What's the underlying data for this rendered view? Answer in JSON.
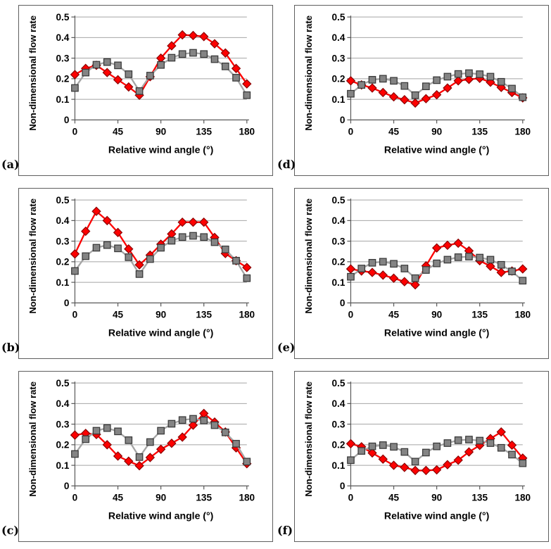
{
  "page": {
    "background": "#FFFFFF"
  },
  "chart_common": {
    "type": "line",
    "title": "",
    "xlabel": "Relative wind angle (°)",
    "ylabel": "Non-dimensional flow rate",
    "xlim": [
      0,
      180
    ],
    "ylim": [
      0,
      0.5
    ],
    "x_ticks": [
      "0",
      "45",
      "90",
      "135",
      "180"
    ],
    "y_ticks": [
      "0",
      "0.1",
      "0.2",
      "0.3",
      "0.4",
      "0.5"
    ],
    "grid": "horizontal",
    "legend": "none",
    "x": [
      0,
      11.25,
      22.5,
      33.75,
      45,
      56.25,
      67.5,
      78.75,
      90,
      101.25,
      112.5,
      123.75,
      135,
      146.25,
      157.5,
      168.75,
      180
    ],
    "styles": {
      "gridline_color": "#A5A5A5",
      "axis_color": "#595959",
      "text_color": "#000000",
      "panel_border_color": "#5F5F5F"
    }
  },
  "chart_data": [
    {
      "panel_label": "(a)",
      "type": "line",
      "series": [
        {
          "name": "red-diamond-series",
          "marker": "diamond",
          "line_color": "#FE0000",
          "marker_fill": "#FE0000",
          "marker_stroke": "#8B0000",
          "values": [
            0.22,
            0.25,
            0.265,
            0.23,
            0.195,
            0.16,
            0.12,
            0.21,
            0.3,
            0.36,
            0.413,
            0.41,
            0.405,
            0.37,
            0.325,
            0.25,
            0.175
          ]
        },
        {
          "name": "gray-square-series",
          "marker": "square",
          "line_color": "#A5A5A5",
          "marker_fill": "#848484",
          "marker_stroke": "#363636",
          "values": [
            0.155,
            0.23,
            0.268,
            0.281,
            0.265,
            0.222,
            0.14,
            0.215,
            0.267,
            0.302,
            0.32,
            0.326,
            0.32,
            0.295,
            0.26,
            0.205,
            0.12
          ]
        }
      ]
    },
    {
      "panel_label": "(b)",
      "type": "line",
      "series": [
        {
          "name": "red-diamond-series",
          "marker": "diamond",
          "line_color": "#FE0000",
          "marker_fill": "#FE0000",
          "marker_stroke": "#8B0000",
          "values": [
            0.238,
            0.348,
            0.445,
            0.4,
            0.342,
            0.262,
            0.185,
            0.232,
            0.285,
            0.335,
            0.392,
            0.392,
            0.392,
            0.318,
            0.24,
            0.205,
            0.172
          ]
        },
        {
          "name": "gray-square-series",
          "marker": "square",
          "line_color": "#A5A5A5",
          "marker_fill": "#848484",
          "marker_stroke": "#363636",
          "values": [
            0.155,
            0.227,
            0.268,
            0.281,
            0.265,
            0.222,
            0.14,
            0.213,
            0.268,
            0.302,
            0.32,
            0.326,
            0.32,
            0.295,
            0.26,
            0.205,
            0.12
          ]
        }
      ]
    },
    {
      "panel_label": "(c)",
      "type": "line",
      "series": [
        {
          "name": "red-diamond-series",
          "marker": "diamond",
          "line_color": "#FE0000",
          "marker_fill": "#FE0000",
          "marker_stroke": "#8B0000",
          "values": [
            0.247,
            0.255,
            0.25,
            0.2,
            0.145,
            0.12,
            0.098,
            0.138,
            0.178,
            0.207,
            0.237,
            0.295,
            0.352,
            0.31,
            0.262,
            0.185,
            0.108
          ]
        },
        {
          "name": "gray-square-series",
          "marker": "square",
          "line_color": "#A5A5A5",
          "marker_fill": "#848484",
          "marker_stroke": "#363636",
          "values": [
            0.155,
            0.227,
            0.268,
            0.281,
            0.265,
            0.222,
            0.14,
            0.213,
            0.268,
            0.302,
            0.32,
            0.326,
            0.318,
            0.295,
            0.26,
            0.205,
            0.118
          ]
        }
      ]
    },
    {
      "panel_label": "(d)",
      "type": "line",
      "series": [
        {
          "name": "red-diamond-series",
          "marker": "diamond",
          "line_color": "#FE0000",
          "marker_fill": "#FE0000",
          "marker_stroke": "#8B0000",
          "values": [
            0.19,
            0.17,
            0.155,
            0.133,
            0.112,
            0.098,
            0.082,
            0.103,
            0.122,
            0.155,
            0.19,
            0.197,
            0.202,
            0.183,
            0.158,
            0.133,
            0.107
          ]
        },
        {
          "name": "gray-square-series",
          "marker": "square",
          "line_color": "#A5A5A5",
          "marker_fill": "#848484",
          "marker_stroke": "#363636",
          "values": [
            0.127,
            0.17,
            0.195,
            0.2,
            0.19,
            0.165,
            0.12,
            0.163,
            0.193,
            0.21,
            0.223,
            0.227,
            0.222,
            0.21,
            0.185,
            0.152,
            0.11
          ]
        }
      ]
    },
    {
      "panel_label": "(e)",
      "type": "line",
      "series": [
        {
          "name": "red-diamond-series",
          "marker": "diamond",
          "line_color": "#FE0000",
          "marker_fill": "#FE0000",
          "marker_stroke": "#8B0000",
          "values": [
            0.165,
            0.155,
            0.148,
            0.135,
            0.12,
            0.103,
            0.088,
            0.18,
            0.267,
            0.28,
            0.29,
            0.253,
            0.205,
            0.178,
            0.148,
            0.155,
            0.165
          ]
        },
        {
          "name": "gray-square-series",
          "marker": "square",
          "line_color": "#A5A5A5",
          "marker_fill": "#848484",
          "marker_stroke": "#363636",
          "values": [
            0.127,
            0.167,
            0.195,
            0.2,
            0.19,
            0.167,
            0.12,
            0.16,
            0.192,
            0.21,
            0.222,
            0.225,
            0.22,
            0.21,
            0.185,
            0.153,
            0.108
          ]
        }
      ]
    },
    {
      "panel_label": "(f)",
      "type": "line",
      "series": [
        {
          "name": "red-diamond-series",
          "marker": "diamond",
          "line_color": "#FE0000",
          "marker_fill": "#FE0000",
          "marker_stroke": "#8B0000",
          "values": [
            0.205,
            0.19,
            0.16,
            0.13,
            0.1,
            0.09,
            0.075,
            0.075,
            0.078,
            0.103,
            0.125,
            0.165,
            0.197,
            0.23,
            0.262,
            0.198,
            0.135
          ]
        },
        {
          "name": "gray-square-series",
          "marker": "square",
          "line_color": "#A5A5A5",
          "marker_fill": "#848484",
          "marker_stroke": "#363636",
          "values": [
            0.125,
            0.17,
            0.192,
            0.198,
            0.19,
            0.165,
            0.118,
            0.162,
            0.192,
            0.208,
            0.222,
            0.225,
            0.22,
            0.208,
            0.185,
            0.152,
            0.11
          ]
        }
      ]
    }
  ]
}
